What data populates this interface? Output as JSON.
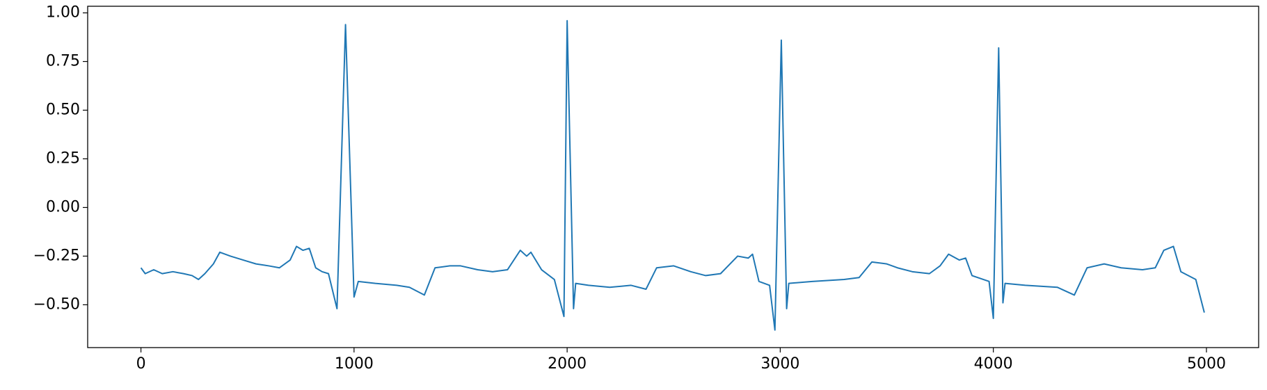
{
  "chart_data": {
    "type": "line",
    "x": [
      0,
      20,
      60,
      100,
      150,
      200,
      240,
      270,
      300,
      340,
      370,
      420,
      480,
      540,
      600,
      650,
      700,
      730,
      760,
      790,
      820,
      850,
      880,
      920,
      960,
      1000,
      1020,
      1100,
      1200,
      1260,
      1330,
      1380,
      1450,
      1500,
      1580,
      1650,
      1720,
      1780,
      1810,
      1830,
      1880,
      1940,
      1985,
      2000,
      2030,
      2040,
      2100,
      2200,
      2300,
      2370,
      2420,
      2500,
      2580,
      2650,
      2720,
      2800,
      2850,
      2870,
      2900,
      2950,
      2975,
      3005,
      3030,
      3040,
      3150,
      3300,
      3370,
      3430,
      3500,
      3550,
      3620,
      3700,
      3750,
      3790,
      3840,
      3870,
      3900,
      3980,
      4000,
      4025,
      4045,
      4055,
      4150,
      4300,
      4380,
      4440,
      4520,
      4600,
      4700,
      4760,
      4800,
      4845,
      4880,
      4950,
      4990
    ],
    "series": [
      {
        "color": "#1f77b4",
        "values": [
          -0.31,
          -0.34,
          -0.32,
          -0.34,
          -0.33,
          -0.34,
          -0.35,
          -0.37,
          -0.34,
          -0.29,
          -0.23,
          -0.25,
          -0.27,
          -0.29,
          -0.3,
          -0.31,
          -0.27,
          -0.2,
          -0.22,
          -0.21,
          -0.31,
          -0.33,
          -0.34,
          -0.52,
          0.94,
          -0.46,
          -0.38,
          -0.39,
          -0.4,
          -0.41,
          -0.45,
          -0.31,
          -0.3,
          -0.3,
          -0.32,
          -0.33,
          -0.32,
          -0.22,
          -0.25,
          -0.23,
          -0.32,
          -0.37,
          -0.56,
          0.96,
          -0.52,
          -0.39,
          -0.4,
          -0.41,
          -0.4,
          -0.42,
          -0.31,
          -0.3,
          -0.33,
          -0.35,
          -0.34,
          -0.25,
          -0.26,
          -0.24,
          -0.38,
          -0.4,
          -0.63,
          0.86,
          -0.52,
          -0.39,
          -0.38,
          -0.37,
          -0.36,
          -0.28,
          -0.29,
          -0.31,
          -0.33,
          -0.34,
          -0.3,
          -0.24,
          -0.27,
          -0.26,
          -0.35,
          -0.38,
          -0.57,
          0.82,
          -0.49,
          -0.39,
          -0.4,
          -0.41,
          -0.45,
          -0.31,
          -0.29,
          -0.31,
          -0.32,
          -0.31,
          -0.22,
          -0.2,
          -0.33,
          -0.37,
          -0.54
        ]
      }
    ],
    "xlim": [
      -250,
      5245
    ],
    "ylim": [
      -0.72,
      1.034
    ],
    "xticks": [
      0,
      1000,
      2000,
      3000,
      4000,
      5000
    ],
    "yticks": [
      {
        "value": -0.5,
        "label": "−0.50"
      },
      {
        "value": -0.25,
        "label": "−0.25"
      },
      {
        "value": 0,
        "label": "0.00"
      },
      {
        "value": 0.25,
        "label": "0.25"
      },
      {
        "value": 0.5,
        "label": "0.50"
      },
      {
        "value": 0.75,
        "label": "0.75"
      },
      {
        "value": 1,
        "label": "1.00"
      }
    ],
    "grid": false
  }
}
